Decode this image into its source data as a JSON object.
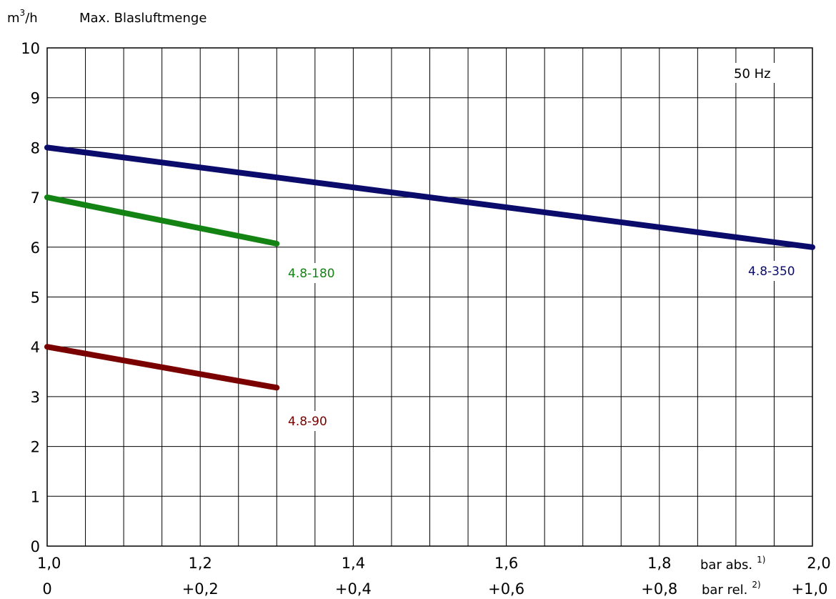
{
  "chart_data": {
    "type": "line",
    "ylabel_unit": "m",
    "ylabel_unit_sup": "3",
    "ylabel_unit_rest": "/h",
    "ylabel_text": "Max. Blasluftmenge",
    "frequency_label": "50 Hz",
    "xlim": [
      1.0,
      2.0
    ],
    "ylim": [
      0,
      10
    ],
    "x_grid_step": 0.05,
    "y_grid_step": 1,
    "grid": true,
    "yticks": [
      "0",
      "1",
      "2",
      "3",
      "4",
      "5",
      "6",
      "7",
      "8",
      "9",
      "10"
    ],
    "xticks_abs": [
      {
        "x": 1.0,
        "label": "1,0"
      },
      {
        "x": 1.2,
        "label": "1,2"
      },
      {
        "x": 1.4,
        "label": "1,4"
      },
      {
        "x": 1.6,
        "label": "1,6"
      },
      {
        "x": 1.8,
        "label": "1,8"
      },
      {
        "x": 2.0,
        "label": "2,0"
      }
    ],
    "xticks_rel": [
      {
        "x": 1.0,
        "label": "0"
      },
      {
        "x": 1.2,
        "label": "+0,2"
      },
      {
        "x": 1.4,
        "label": "+0,4"
      },
      {
        "x": 1.6,
        "label": "+0,6"
      },
      {
        "x": 1.8,
        "label": "+0,8"
      },
      {
        "x": 2.0,
        "label": "+1,0"
      }
    ],
    "xlabel_abs": "bar abs.",
    "xlabel_abs_sup": "1)",
    "xlabel_rel": "bar rel.",
    "xlabel_rel_sup": "2)",
    "series": [
      {
        "name": "4.8-350",
        "color": "#0b0b6b",
        "x": [
          1.0,
          2.0
        ],
        "y": [
          8.0,
          6.0
        ]
      },
      {
        "name": "4.8-180",
        "color": "#138313",
        "x": [
          1.0,
          1.3
        ],
        "y": [
          7.0,
          6.07
        ]
      },
      {
        "name": "4.8-90",
        "color": "#7a0000",
        "x": [
          1.0,
          1.3
        ],
        "y": [
          4.0,
          3.18
        ]
      }
    ]
  }
}
